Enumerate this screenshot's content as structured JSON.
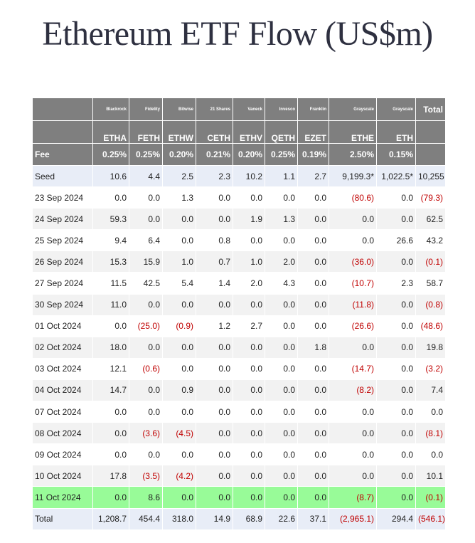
{
  "title": "Ethereum ETF Flow (US$m)",
  "header": {
    "issuers": [
      "Blackrock",
      "Fidelity",
      "Bitwise",
      "21 Shares",
      "Vaneck",
      "Invesco",
      "Franklin",
      "Grayscale",
      "Grayscale"
    ],
    "total_label": "Total",
    "tickers": [
      "ETHA",
      "FETH",
      "ETHW",
      "CETH",
      "ETHV",
      "QETH",
      "EZET",
      "ETHE",
      "ETH"
    ],
    "fee_label": "Fee",
    "fees": [
      "0.25%",
      "0.25%",
      "0.20%",
      "0.21%",
      "0.20%",
      "0.25%",
      "0.19%",
      "2.50%",
      "0.15%"
    ]
  },
  "rows": [
    {
      "label": "Seed",
      "cells": [
        "10.6",
        "4.4",
        "2.5",
        "2.3",
        "10.2",
        "1.1",
        "2.7",
        "9,199.3*",
        "1,022.5*",
        "10,255"
      ]
    },
    {
      "label": "23 Sep 2024",
      "cells": [
        "0.0",
        "0.0",
        "1.3",
        "0.0",
        "0.0",
        "0.0",
        "0.0",
        "(80.6)",
        "0.0",
        "(79.3)"
      ]
    },
    {
      "label": "24 Sep 2024",
      "cells": [
        "59.3",
        "0.0",
        "0.0",
        "0.0",
        "1.9",
        "1.3",
        "0.0",
        "0.0",
        "0.0",
        "62.5"
      ]
    },
    {
      "label": "25 Sep 2024",
      "cells": [
        "9.4",
        "6.4",
        "0.0",
        "0.8",
        "0.0",
        "0.0",
        "0.0",
        "0.0",
        "26.6",
        "43.2"
      ]
    },
    {
      "label": "26 Sep 2024",
      "cells": [
        "15.3",
        "15.9",
        "1.0",
        "0.7",
        "1.0",
        "2.0",
        "0.0",
        "(36.0)",
        "0.0",
        "(0.1)"
      ]
    },
    {
      "label": "27 Sep 2024",
      "cells": [
        "11.5",
        "42.5",
        "5.4",
        "1.4",
        "2.0",
        "4.3",
        "0.0",
        "(10.7)",
        "2.3",
        "58.7"
      ]
    },
    {
      "label": "30 Sep 2024",
      "cells": [
        "11.0",
        "0.0",
        "0.0",
        "0.0",
        "0.0",
        "0.0",
        "0.0",
        "(11.8)",
        "0.0",
        "(0.8)"
      ]
    },
    {
      "label": "01 Oct 2024",
      "cells": [
        "0.0",
        "(25.0)",
        "(0.9)",
        "1.2",
        "2.7",
        "0.0",
        "0.0",
        "(26.6)",
        "0.0",
        "(48.6)"
      ]
    },
    {
      "label": "02 Oct 2024",
      "cells": [
        "18.0",
        "0.0",
        "0.0",
        "0.0",
        "0.0",
        "0.0",
        "1.8",
        "0.0",
        "0.0",
        "19.8"
      ]
    },
    {
      "label": "03 Oct 2024",
      "cells": [
        "12.1",
        "(0.6)",
        "0.0",
        "0.0",
        "0.0",
        "0.0",
        "0.0",
        "(14.7)",
        "0.0",
        "(3.2)"
      ]
    },
    {
      "label": "04 Oct 2024",
      "cells": [
        "14.7",
        "0.0",
        "0.9",
        "0.0",
        "0.0",
        "0.0",
        "0.0",
        "(8.2)",
        "0.0",
        "7.4"
      ]
    },
    {
      "label": "07 Oct 2024",
      "cells": [
        "0.0",
        "0.0",
        "0.0",
        "0.0",
        "0.0",
        "0.0",
        "0.0",
        "0.0",
        "0.0",
        "0.0"
      ]
    },
    {
      "label": "08 Oct 2024",
      "cells": [
        "0.0",
        "(3.6)",
        "(4.5)",
        "0.0",
        "0.0",
        "0.0",
        "0.0",
        "0.0",
        "0.0",
        "(8.1)"
      ]
    },
    {
      "label": "09 Oct 2024",
      "cells": [
        "0.0",
        "0.0",
        "0.0",
        "0.0",
        "0.0",
        "0.0",
        "0.0",
        "0.0",
        "0.0",
        "0.0"
      ]
    },
    {
      "label": "10 Oct 2024",
      "cells": [
        "17.8",
        "(3.5)",
        "(4.2)",
        "0.0",
        "0.0",
        "0.0",
        "0.0",
        "0.0",
        "0.0",
        "10.1"
      ]
    },
    {
      "label": "11 Oct 2024",
      "cells": [
        "0.0",
        "8.6",
        "0.0",
        "0.0",
        "0.0",
        "0.0",
        "0.0",
        "(8.7)",
        "0.0",
        "(0.1)"
      ]
    },
    {
      "label": "Total",
      "cells": [
        "1,208.7",
        "454.4",
        "318.0",
        "14.9",
        "68.9",
        "22.6",
        "37.1",
        "(2,965.1)",
        "294.4",
        "(546.1)"
      ]
    }
  ]
}
